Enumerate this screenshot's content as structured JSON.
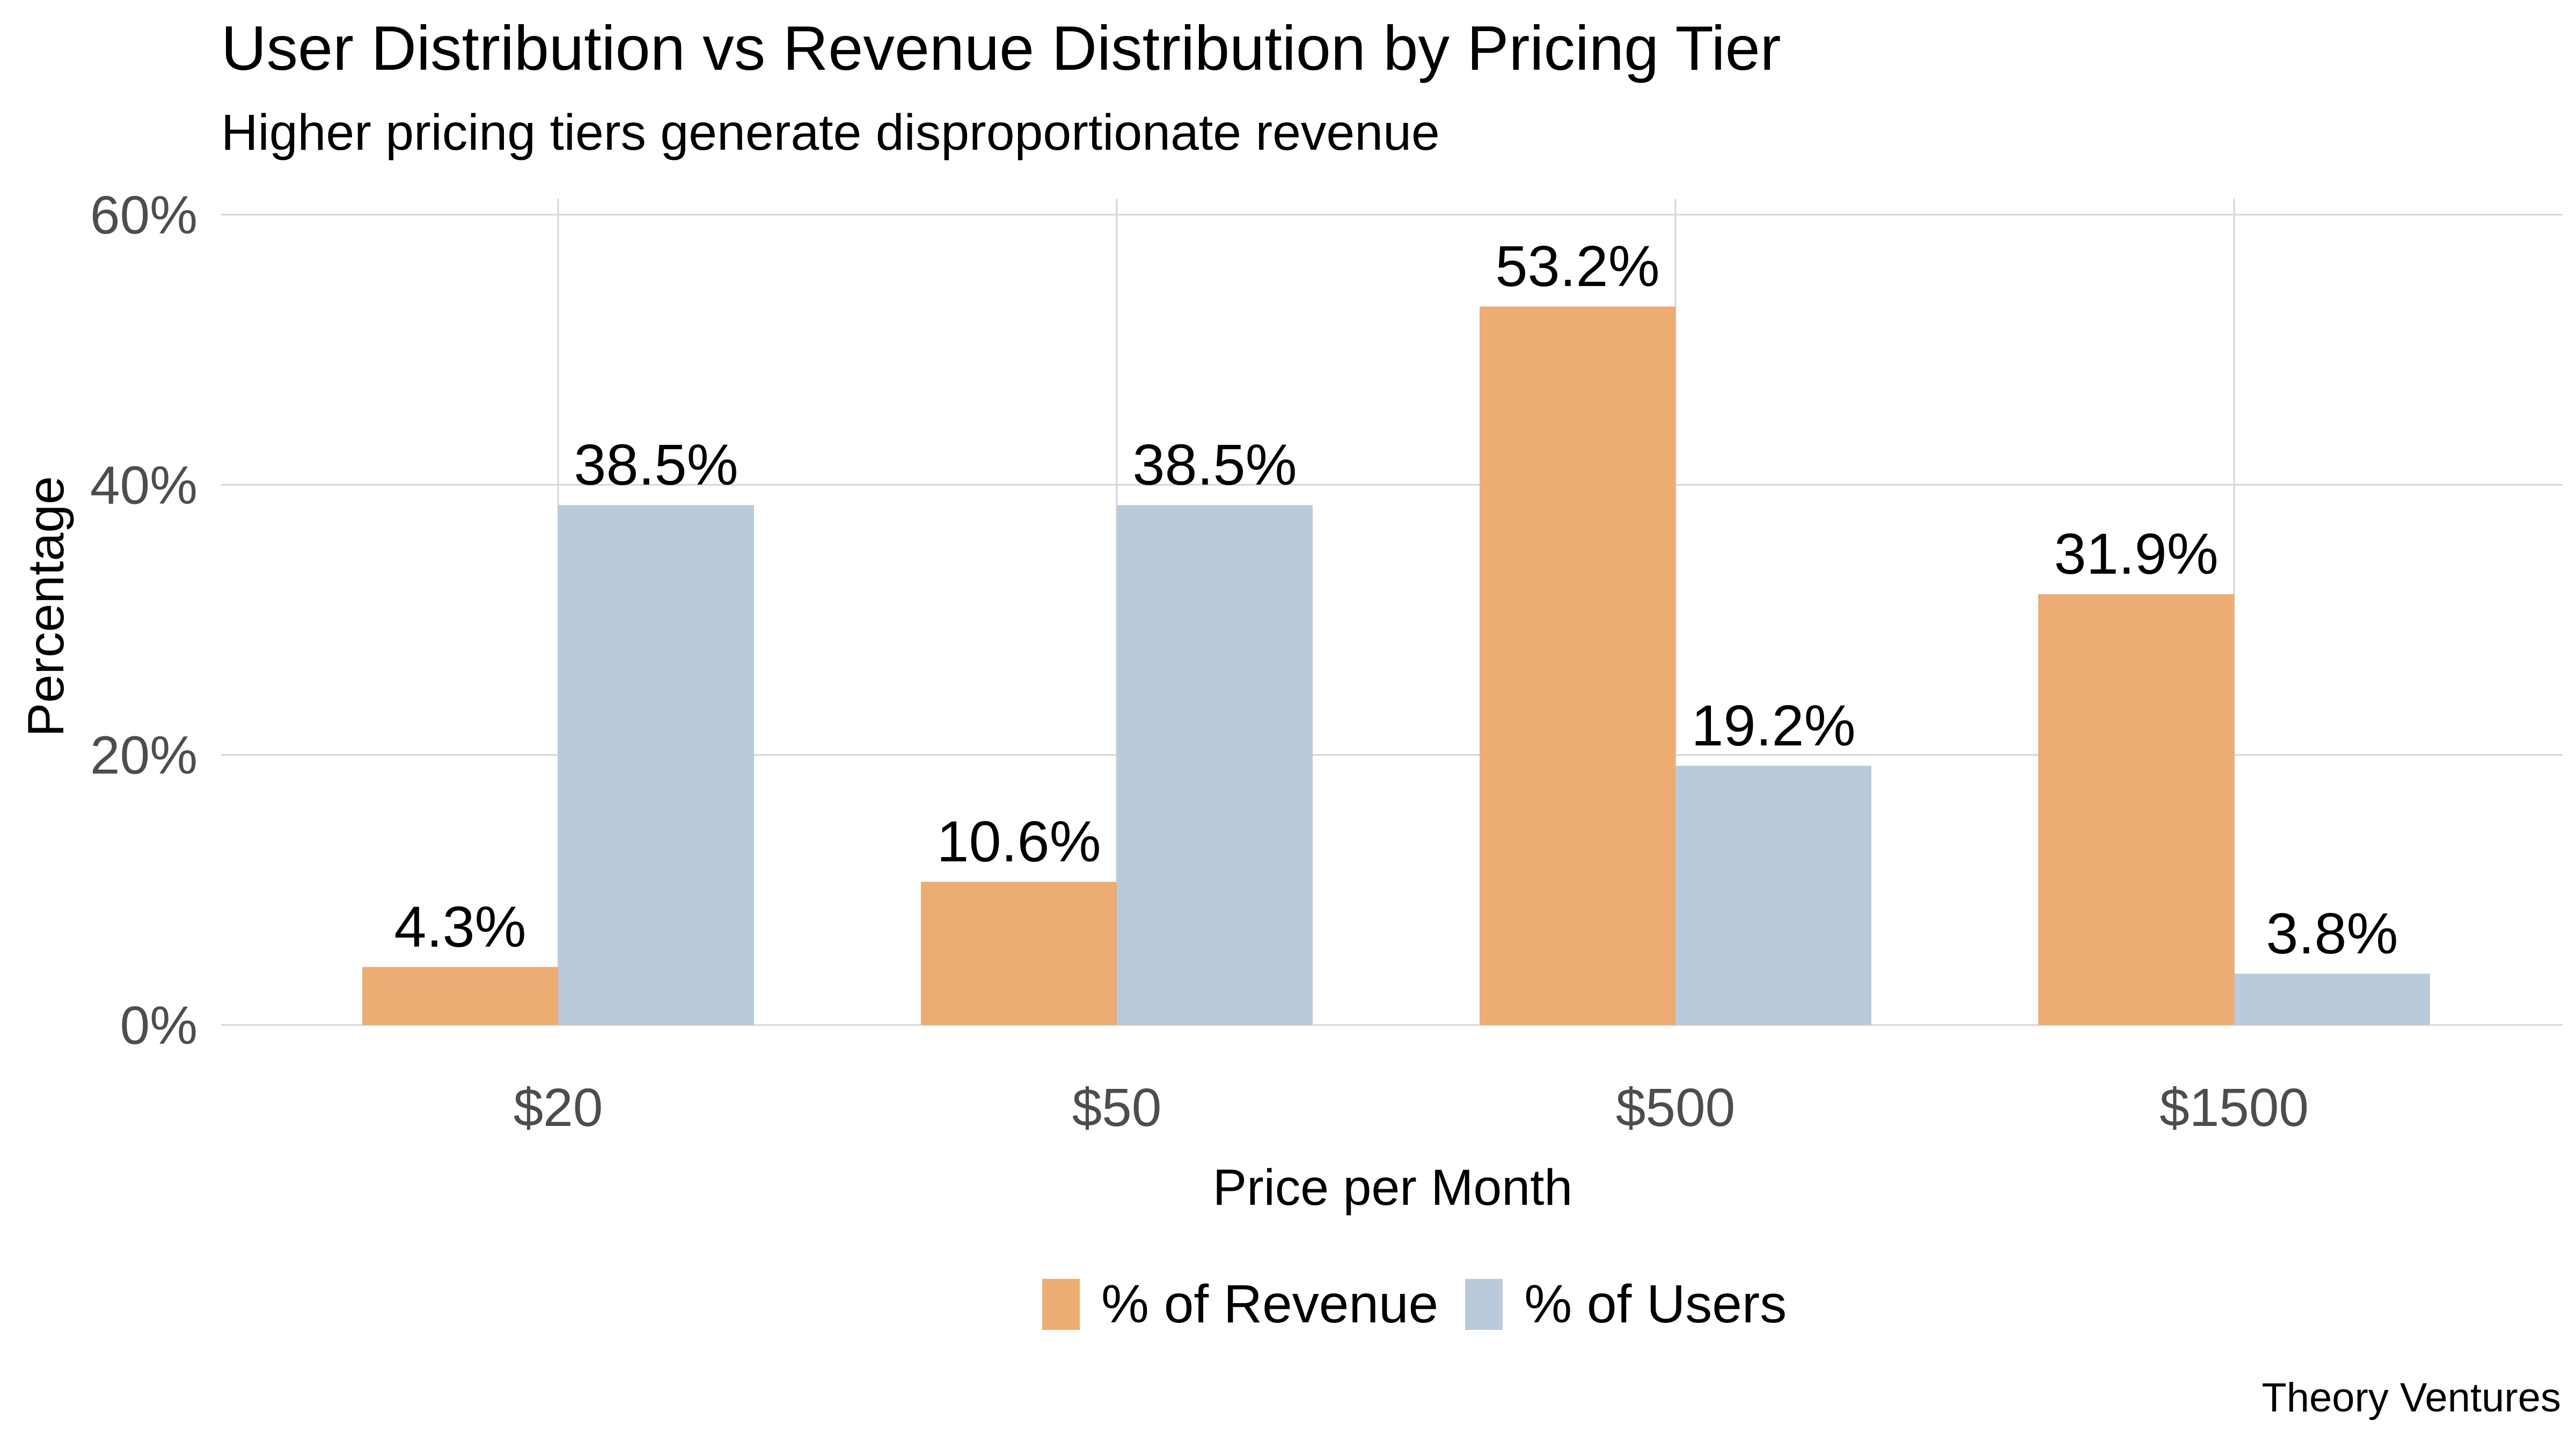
{
  "title": "User Distribution vs Revenue Distribution by Pricing Tier",
  "subtitle": "Higher pricing tiers generate disproportionate revenue",
  "credit": "Theory Ventures",
  "colors": {
    "revenue": "#ECAC72",
    "users": "#B9CADB",
    "grid": "#D6D6D6",
    "tick_text": "#4D4D4D"
  },
  "chart_data": {
    "type": "bar",
    "title": "User Distribution vs Revenue Distribution by Pricing Tier",
    "subtitle": "Higher pricing tiers generate disproportionate revenue",
    "xlabel": "Price per Month",
    "ylabel": "Percentage",
    "categories": [
      "$20",
      "$50",
      "$500",
      "$1500"
    ],
    "ylim": [
      0,
      60
    ],
    "yticks": [
      0,
      20,
      40,
      60
    ],
    "ytick_labels": [
      "0%",
      "20%",
      "40%",
      "60%"
    ],
    "grid": true,
    "legend_position": "bottom",
    "series": [
      {
        "name": "% of Revenue",
        "values": [
          4.3,
          10.6,
          53.2,
          31.9
        ],
        "labels": [
          "4.3%",
          "10.6%",
          "53.2%",
          "31.9%"
        ]
      },
      {
        "name": "% of Users",
        "values": [
          38.5,
          38.5,
          19.2,
          3.8
        ],
        "labels": [
          "38.5%",
          "38.5%",
          "19.2%",
          "3.8%"
        ]
      }
    ]
  }
}
